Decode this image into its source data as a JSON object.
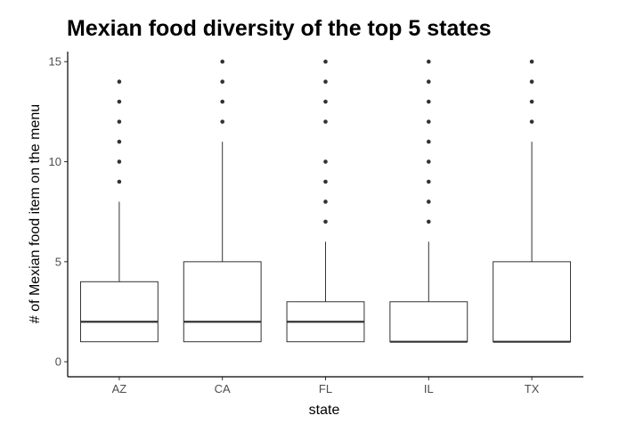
{
  "chart_data": {
    "type": "boxplot",
    "title": "Mexian food diversity of the top 5 states",
    "xlabel": "state",
    "ylabel": "# of Mexian food item on the menu",
    "ylim": [
      -0.75,
      15.5
    ],
    "yticks": [
      0,
      5,
      10,
      15
    ],
    "categories": [
      "AZ",
      "CA",
      "FL",
      "IL",
      "TX"
    ],
    "boxes": [
      {
        "category": "AZ",
        "q1": 1,
        "median": 2,
        "q3": 4,
        "whisker_low": 1,
        "whisker_high": 8,
        "outliers": [
          9,
          10,
          11,
          12,
          13,
          14
        ]
      },
      {
        "category": "CA",
        "q1": 1,
        "median": 2,
        "q3": 5,
        "whisker_low": 1,
        "whisker_high": 11,
        "outliers": [
          12,
          13,
          14,
          15
        ]
      },
      {
        "category": "FL",
        "q1": 1,
        "median": 2,
        "q3": 3,
        "whisker_low": 1,
        "whisker_high": 6,
        "outliers": [
          7,
          8,
          9,
          10,
          12,
          13,
          14,
          15
        ]
      },
      {
        "category": "IL",
        "q1": 1,
        "median": 1,
        "q3": 3,
        "whisker_low": 1,
        "whisker_high": 6,
        "outliers": [
          7,
          8,
          9,
          10,
          11,
          12,
          13,
          14,
          15
        ]
      },
      {
        "category": "TX",
        "q1": 1,
        "median": 1,
        "q3": 5,
        "whisker_low": 1,
        "whisker_high": 11,
        "outliers": [
          12,
          13,
          14,
          15
        ]
      }
    ],
    "grid": false,
    "legend": "none",
    "colors": {
      "box_fill": "#ffffff",
      "box_stroke": "#333333",
      "outlier": "#333333",
      "axis": "#000000"
    }
  }
}
